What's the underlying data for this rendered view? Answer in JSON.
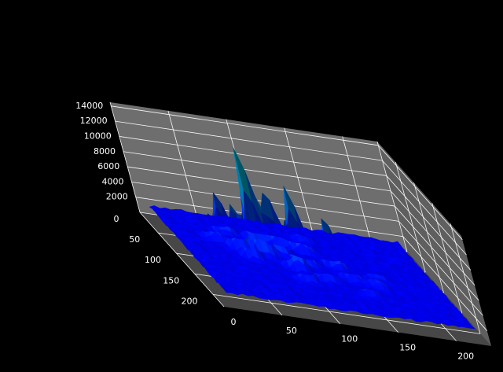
{
  "chart_data": {
    "type": "surface",
    "title": "",
    "xlabel": "",
    "ylabel": "",
    "zlabel": "",
    "grid": true,
    "background": "#000000",
    "pane_color": "#7a7a7a",
    "colormap": "winter",
    "colormap_low": "#0000ff",
    "colormap_high": "#00ff80",
    "x_axis": {
      "ticks": [
        0,
        50,
        100,
        150,
        200
      ],
      "range": [
        0,
        230
      ]
    },
    "y_axis": {
      "ticks": [
        0,
        50,
        100,
        150,
        200
      ],
      "range": [
        0,
        230
      ]
    },
    "z_axis": {
      "ticks": [
        2000,
        4000,
        6000,
        8000,
        10000,
        12000,
        14000
      ],
      "range": [
        0,
        14500
      ]
    },
    "baseline_z": 1500,
    "peaks": [
      {
        "x": 55,
        "y": 88,
        "z": 14000
      },
      {
        "x": 85,
        "y": 95,
        "z": 9800
      },
      {
        "x": 68,
        "y": 120,
        "z": 10000
      },
      {
        "x": 105,
        "y": 112,
        "z": 11000
      },
      {
        "x": 60,
        "y": 103,
        "z": 8600
      },
      {
        "x": 95,
        "y": 80,
        "z": 8700
      },
      {
        "x": 120,
        "y": 100,
        "z": 8000
      },
      {
        "x": 100,
        "y": 140,
        "z": 8200
      },
      {
        "x": 75,
        "y": 78,
        "z": 7300
      },
      {
        "x": 80,
        "y": 65,
        "z": 6800
      },
      {
        "x": 50,
        "y": 60,
        "z": 6700
      },
      {
        "x": 140,
        "y": 120,
        "z": 5500
      },
      {
        "x": 130,
        "y": 145,
        "z": 5000
      },
      {
        "x": 90,
        "y": 60,
        "z": 5400
      },
      {
        "x": 110,
        "y": 65,
        "z": 4800
      },
      {
        "x": 70,
        "y": 45,
        "z": 5000
      },
      {
        "x": 150,
        "y": 100,
        "z": 4800
      },
      {
        "x": 120,
        "y": 170,
        "z": 3700
      },
      {
        "x": 140,
        "y": 165,
        "z": 3500
      },
      {
        "x": 165,
        "y": 150,
        "z": 3200
      },
      {
        "x": 40,
        "y": 130,
        "z": 3200
      }
    ]
  }
}
